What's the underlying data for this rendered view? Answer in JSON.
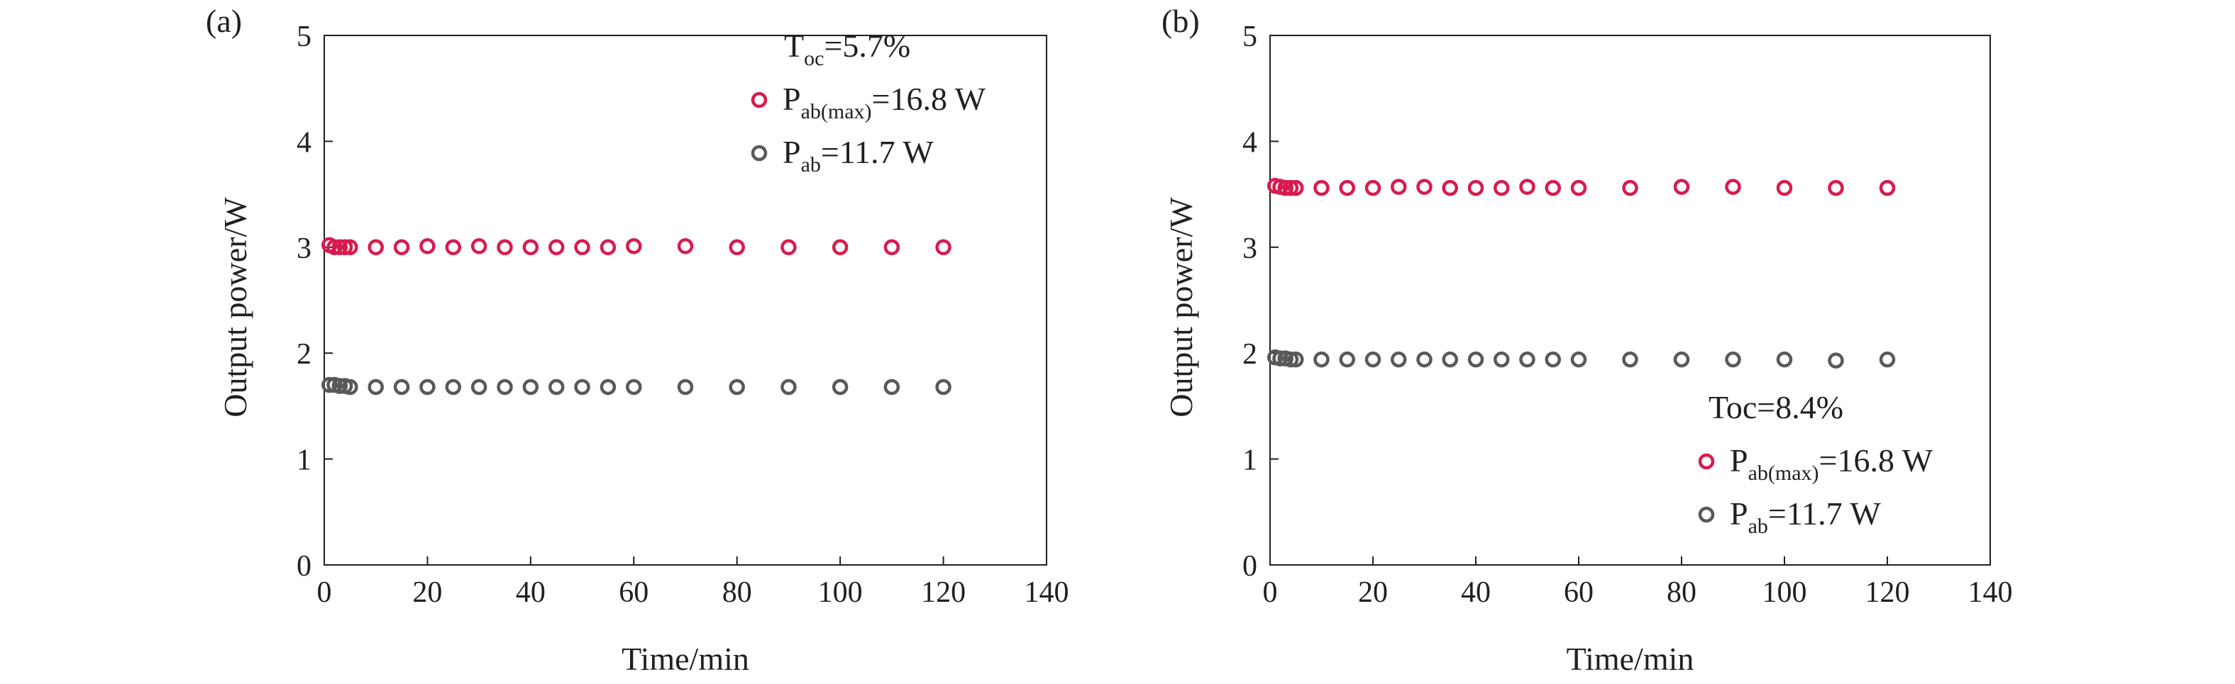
{
  "chart_data": [
    {
      "type": "scatter",
      "panel_label": "(a)",
      "xlabel": "Time/min",
      "ylabel": "Output power/W",
      "xlim": [
        0,
        140
      ],
      "ylim": [
        0,
        5
      ],
      "xticks": [
        "0",
        "20",
        "40",
        "60",
        "80",
        "100",
        "120",
        "140"
      ],
      "yticks": [
        "0",
        "1",
        "2",
        "3",
        "4",
        "5"
      ],
      "grid": false,
      "legend_position": "top-right",
      "legend_title": {
        "main": "T",
        "sub": "oc",
        "rest": "=5.7%"
      },
      "series": [
        {
          "name": "Pab(max)=16.8 W",
          "legend": {
            "main": "P",
            "sub": "ab(max)",
            "rest": "=16.8 W"
          },
          "color": "#d81b4e",
          "x": [
            1,
            2,
            3,
            4,
            5,
            10,
            15,
            20,
            25,
            30,
            35,
            40,
            45,
            50,
            55,
            60,
            70,
            80,
            90,
            100,
            110,
            120
          ],
          "y": [
            3.02,
            3.0,
            3.0,
            3.0,
            3.0,
            3.0,
            3.0,
            3.01,
            3.0,
            3.01,
            3.0,
            3.0,
            3.0,
            3.0,
            3.0,
            3.01,
            3.01,
            3.0,
            3.0,
            3.0,
            3.0,
            3.0
          ]
        },
        {
          "name": "Pab=11.7 W",
          "legend": {
            "main": "P",
            "sub": "ab",
            "rest": "=11.7 W"
          },
          "color": "#595959",
          "x": [
            1,
            2,
            3,
            4,
            5,
            10,
            15,
            20,
            25,
            30,
            35,
            40,
            45,
            50,
            55,
            60,
            70,
            80,
            90,
            100,
            110,
            120
          ],
          "y": [
            1.7,
            1.7,
            1.69,
            1.69,
            1.68,
            1.68,
            1.68,
            1.68,
            1.68,
            1.68,
            1.68,
            1.68,
            1.68,
            1.68,
            1.68,
            1.68,
            1.68,
            1.68,
            1.68,
            1.68,
            1.68,
            1.68
          ]
        }
      ]
    },
    {
      "type": "scatter",
      "panel_label": "(b)",
      "xlabel": "Time/min",
      "ylabel": "Output power/W",
      "xlim": [
        0,
        140
      ],
      "ylim": [
        0,
        5
      ],
      "xticks": [
        "0",
        "20",
        "40",
        "60",
        "80",
        "100",
        "120",
        "140"
      ],
      "yticks": [
        "0",
        "1",
        "2",
        "3",
        "4",
        "5"
      ],
      "grid": false,
      "legend_position": "bottom-right",
      "legend_title": {
        "main": "Toc=8.4%",
        "sub": "",
        "rest": ""
      },
      "series": [
        {
          "name": "Pab(max)=16.8 W",
          "legend": {
            "main": "P",
            "sub": "ab(max)",
            "rest": "=16.8 W"
          },
          "color": "#d81b4e",
          "x": [
            1,
            2,
            3,
            4,
            5,
            10,
            15,
            20,
            25,
            30,
            35,
            40,
            45,
            50,
            55,
            60,
            70,
            80,
            90,
            100,
            110,
            120
          ],
          "y": [
            3.58,
            3.57,
            3.56,
            3.56,
            3.56,
            3.56,
            3.56,
            3.56,
            3.57,
            3.57,
            3.56,
            3.56,
            3.56,
            3.57,
            3.56,
            3.56,
            3.56,
            3.57,
            3.57,
            3.56,
            3.56,
            3.56
          ]
        },
        {
          "name": "Pab=11.7 W",
          "legend": {
            "main": "P",
            "sub": "ab",
            "rest": "=11.7 W"
          },
          "color": "#595959",
          "x": [
            1,
            2,
            3,
            4,
            5,
            10,
            15,
            20,
            25,
            30,
            35,
            40,
            45,
            50,
            55,
            60,
            70,
            80,
            90,
            100,
            110,
            120
          ],
          "y": [
            1.96,
            1.95,
            1.95,
            1.94,
            1.94,
            1.94,
            1.94,
            1.94,
            1.94,
            1.94,
            1.94,
            1.94,
            1.94,
            1.94,
            1.94,
            1.94,
            1.94,
            1.94,
            1.94,
            1.94,
            1.93,
            1.94
          ]
        }
      ]
    }
  ]
}
